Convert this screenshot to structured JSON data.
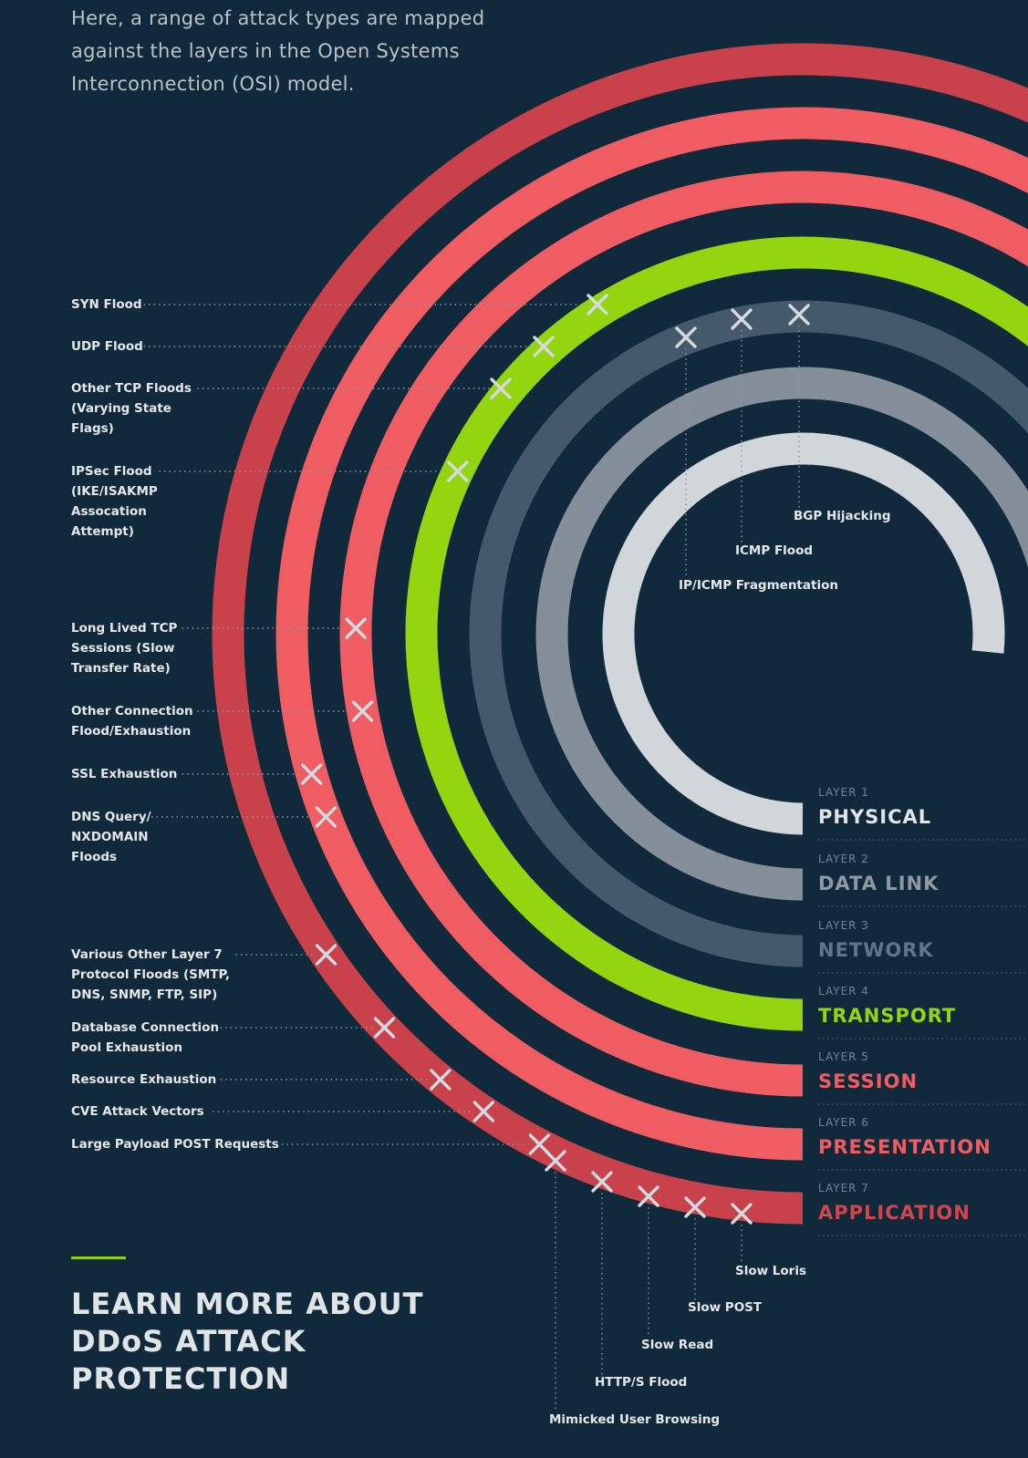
{
  "intro_text": "Here, a range of attack types are mapped against the layers in the Open Systems Interconnection (OSI) model.",
  "colors": {
    "background": "#102a3c",
    "application": "#c9414a",
    "presentation": "#ef5c62",
    "session": "#ef5c62",
    "transport": "#93d50f",
    "network": "#44596a",
    "data_link": "#858f99",
    "physical": "#d0d6da",
    "marker": "#d5dade",
    "accent": "#8ccc12"
  },
  "layers": [
    {
      "id": "physical",
      "number": "LAYER 1",
      "name": "PHYSICAL"
    },
    {
      "id": "data_link",
      "number": "LAYER 2",
      "name": "DATA LINK"
    },
    {
      "id": "network",
      "number": "LAYER 3",
      "name": "NETWORK"
    },
    {
      "id": "transport",
      "number": "LAYER 4",
      "name": "TRANSPORT"
    },
    {
      "id": "session",
      "number": "LAYER 5",
      "name": "SESSION"
    },
    {
      "id": "presentation",
      "number": "LAYER 6",
      "name": "PRESENTATION"
    },
    {
      "id": "application",
      "number": "LAYER 7",
      "name": "APPLICATION"
    }
  ],
  "left_attacks": [
    {
      "label": "SYN Flood",
      "layer": "transport"
    },
    {
      "label": "UDP Flood",
      "layer": "transport"
    },
    {
      "label": "Other TCP Floods\n(Varying State\nFlags)",
      "layer": "transport"
    },
    {
      "label": "IPSec Flood\n(IKE/ISAKMP\nAssocation\nAttempt)",
      "layer": "transport"
    },
    {
      "label": "Long Lived TCP\nSessions (Slow\nTransfer Rate)",
      "layer": "session"
    },
    {
      "label": "Other Connection\nFlood/Exhaustion",
      "layer": "session"
    },
    {
      "label": "SSL Exhaustion",
      "layer": "presentation"
    },
    {
      "label": "DNS Query/\nNXDOMAIN\nFloods",
      "layer": "presentation"
    },
    {
      "label": "Various Other Layer 7\nProtocol Floods (SMTP,\nDNS, SNMP, FTP, SIP)",
      "layer": "application"
    },
    {
      "label": "Database Connection\nPool Exhaustion",
      "layer": "application"
    },
    {
      "label": "Resource Exhaustion",
      "layer": "application"
    },
    {
      "label": "CVE Attack Vectors",
      "layer": "application"
    },
    {
      "label": "Large Payload POST Requests",
      "layer": "application"
    }
  ],
  "network_attacks": [
    {
      "label": "BGP Hijacking",
      "layer": "network"
    },
    {
      "label": "ICMP Flood",
      "layer": "network"
    },
    {
      "label": "IP/ICMP Fragmentation",
      "layer": "network"
    }
  ],
  "bottom_attacks": [
    {
      "label": "Slow Loris",
      "layer": "application"
    },
    {
      "label": "Slow POST",
      "layer": "application"
    },
    {
      "label": "Slow Read",
      "layer": "application"
    },
    {
      "label": "HTTP/S Flood",
      "layer": "application"
    },
    {
      "label": "Mimicked User Browsing",
      "layer": "application"
    }
  ],
  "cta": {
    "text": "LEARN MORE ABOUT DDoS ATTACK PROTECTION"
  }
}
